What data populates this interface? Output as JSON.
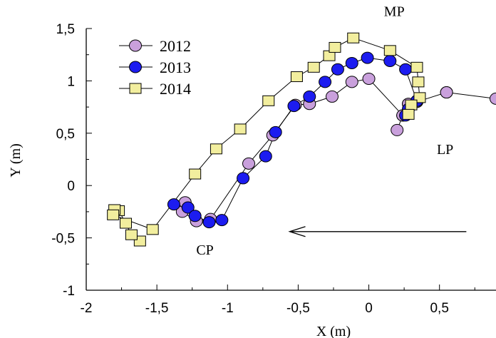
{
  "chart_data": {
    "type": "scatter",
    "title": "",
    "xlabel": "X (m)",
    "ylabel": "Y (m)",
    "xlim": [
      -2,
      0.9
    ],
    "ylim": [
      -1,
      1.5
    ],
    "xticks": [
      "-2",
      "-1,5",
      "-1",
      "-0,5",
      "0",
      "0,5"
    ],
    "yticks": [
      "-1",
      "-0,5",
      "0",
      "0,5",
      "1",
      "1,5"
    ],
    "grid": false,
    "legend_position": "top-left",
    "annotations": [
      {
        "text": "MP",
        "x": 0.18,
        "y": 1.62
      },
      {
        "text": "LP",
        "x": 0.54,
        "y": 0.3
      },
      {
        "text": "CP",
        "x": -1.16,
        "y": -0.66
      }
    ],
    "arrow": {
      "from": [
        0.69,
        -0.44
      ],
      "to": [
        -0.56,
        -0.44
      ],
      "direction": "left"
    },
    "series": [
      {
        "name": "2012",
        "color": "#c9a0dc",
        "marker": "circle",
        "x": [
          0.2,
          0.24,
          0.28,
          0.34,
          0.55,
          0.9,
          0.55,
          0.34,
          0.28,
          0.24,
          0.0,
          -0.12,
          -0.26,
          -0.42,
          -0.52,
          -0.68,
          -0.85,
          -1.12,
          -1.22,
          -1.32,
          -1.3
        ],
        "y": [
          0.53,
          0.67,
          0.78,
          0.8,
          0.89,
          0.83,
          0.89,
          0.8,
          0.78,
          0.67,
          1.02,
          0.99,
          0.85,
          0.78,
          0.77,
          0.48,
          0.21,
          -0.32,
          -0.34,
          -0.25,
          -0.16
        ]
      },
      {
        "name": "2013",
        "color": "#1c1cf0",
        "marker": "circle",
        "x": [
          -1.38,
          -1.28,
          -1.23,
          -1.13,
          -1.04,
          -0.89,
          -0.73,
          -0.66,
          -0.53,
          -0.42,
          -0.31,
          -0.22,
          -0.12,
          -0.01,
          0.15,
          0.26,
          0.34,
          0.28,
          0.26
        ],
        "y": [
          -0.18,
          -0.21,
          -0.29,
          -0.35,
          -0.33,
          0.07,
          0.28,
          0.51,
          0.76,
          0.85,
          0.99,
          1.11,
          1.17,
          1.22,
          1.19,
          1.11,
          0.81,
          0.73,
          0.67
        ]
      },
      {
        "name": "2014",
        "color": "#f2ee9e",
        "marker": "square",
        "x": [
          -1.62,
          -1.68,
          -1.72,
          -1.77,
          -1.8,
          -1.81,
          -1.53,
          -1.23,
          -1.08,
          -0.91,
          -0.71,
          -0.51,
          -0.39,
          -0.28,
          -0.24,
          -0.11,
          0.15,
          0.34,
          0.35,
          0.36,
          0.3,
          0.28
        ],
        "y": [
          -0.53,
          -0.47,
          -0.36,
          -0.24,
          -0.23,
          -0.28,
          -0.42,
          0.11,
          0.35,
          0.54,
          0.81,
          1.04,
          1.13,
          1.24,
          1.32,
          1.41,
          1.29,
          1.13,
          0.99,
          0.84,
          0.77,
          0.68
        ]
      }
    ]
  }
}
